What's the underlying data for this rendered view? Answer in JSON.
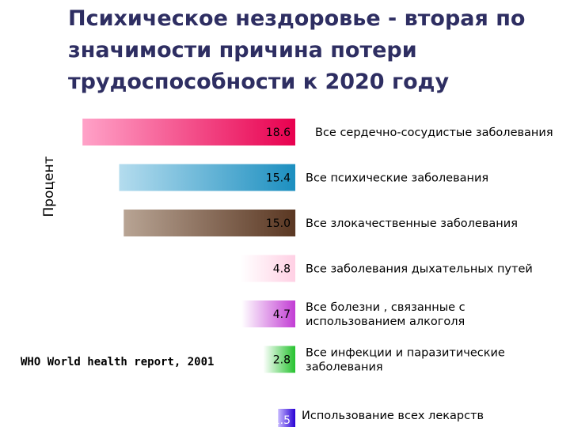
{
  "title": "Психическое нездоровье - вторая по значимости причина потери трудоспособности к 2020 году",
  "ylabel": "Процент",
  "source": "WHO World health report, 2001",
  "chart_data": {
    "type": "bar",
    "orientation": "horizontal",
    "title": "Психическое нездоровье - вторая по значимости причина потери трудоспособности к 2020 году",
    "ylabel": "Процент",
    "categories": [
      [
        "Все сердечно-сосудистые заболевания"
      ],
      [
        "Все психические заболевания"
      ],
      [
        "Все злокачественные заболевания"
      ],
      [
        "Все заболевания дыхательных путей"
      ],
      [
        "Все болезни , связанные с",
        "использованием алкоголя"
      ],
      [
        "Все инфекции и паразитические",
        "заболевания"
      ],
      [
        "Использование всех лекарств"
      ]
    ],
    "values": [
      18.6,
      15.4,
      15.0,
      4.8,
      4.7,
      2.8,
      1.5
    ],
    "value_labels": [
      "18.6",
      "15.4",
      "15.0",
      "4.8",
      "4.7",
      "2.8",
      "1.5"
    ],
    "colors": [
      [
        "#ffa2c8",
        "#e8004f"
      ],
      [
        "#b4dcee",
        "#1c8fc0"
      ],
      [
        "#b8a494",
        "#5a3722"
      ],
      [
        "#ffffff",
        "#ffd0e4"
      ],
      [
        "#ffffff",
        "#c23dd4"
      ],
      [
        "#ffffff",
        "#25c22e"
      ],
      [
        "#c7b8ff",
        "#2800d4"
      ]
    ],
    "light_label_bars": [
      6
    ]
  }
}
